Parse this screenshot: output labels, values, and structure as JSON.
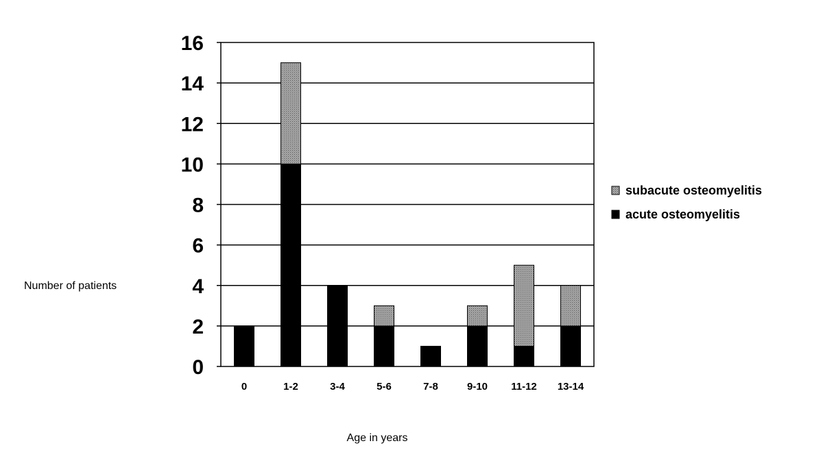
{
  "chart_data": {
    "type": "bar",
    "stacked": true,
    "categories": [
      "0",
      "1-2",
      "3-4",
      "5-6",
      "7-8",
      "9-10",
      "11-12",
      "13-14"
    ],
    "series": [
      {
        "name": "acute osteomyelitis",
        "color": "#000000",
        "pattern": "solid",
        "values": [
          2,
          10,
          4,
          2,
          1,
          2,
          1,
          2
        ]
      },
      {
        "name": "subacute osteomyelitis",
        "color": "#8c8c8c",
        "pattern": "dotted-gray",
        "values": [
          0,
          5,
          0,
          1,
          0,
          1,
          4,
          2
        ]
      }
    ],
    "xlabel": "Age in years",
    "ylabel": "Number of patients",
    "ylim": [
      0,
      16
    ],
    "yticks": [
      0,
      2,
      4,
      6,
      8,
      10,
      12,
      14,
      16
    ],
    "grid": "horizontal",
    "legend": {
      "position": "right",
      "order": [
        "subacute osteomyelitis",
        "acute osteomyelitis"
      ]
    }
  }
}
